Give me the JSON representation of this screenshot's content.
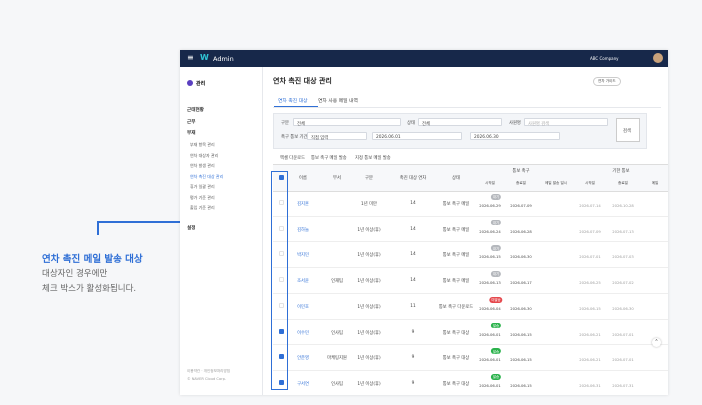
{
  "callout": {
    "title": "연차 촉진 메일 발송 대상",
    "lines": [
      "대상자인 경우에만",
      "체크 박스가 활성화됩니다."
    ]
  },
  "topbar": {
    "brand": "Admin",
    "company": "ABC Company"
  },
  "sidebar": {
    "title": "관리",
    "menu": [
      {
        "label": "근태현황",
        "level": 1
      },
      {
        "label": "근무",
        "level": 1
      },
      {
        "label": "부재",
        "level": 1
      },
      {
        "label": "부재 항목 관리",
        "level": 2
      },
      {
        "label": "연차 대상자 관리",
        "level": 2
      },
      {
        "label": "연차 발생 관리",
        "level": 2
      },
      {
        "label": "연차 촉진 대상 관리",
        "level": 2,
        "active": true
      },
      {
        "label": "휴가 일괄 관리",
        "level": 2
      },
      {
        "label": "평가 기준 관리",
        "level": 2
      },
      {
        "label": "출입 기준 관리",
        "level": 2
      },
      {
        "label": "설정",
        "level": 1
      }
    ],
    "footer": [
      "이용약관 · 개인정보처리방침",
      "© NAVER Cloud Corp."
    ]
  },
  "page": {
    "title": "연차 촉진 대상 관리",
    "guide": "연차 가이드",
    "tabs": [
      "연차 촉진 대상",
      "연차 사용 메일 내역"
    ],
    "filters": {
      "type_label": "구분",
      "type_value": "전체",
      "status_label": "상태",
      "status_value": "전체",
      "name_label": "사원명",
      "name_placeholder": "사원명 검색",
      "period_label": "촉구 통보 기간",
      "period_value": "직접 입력",
      "date_from": "2026.06.01",
      "date_to": "2026.06.30",
      "search": "검색"
    },
    "actions": [
      "엑셀 다운로드",
      "통보 촉구 메일 발송",
      "지정 통보 메일 발송"
    ]
  },
  "table": {
    "headers": [
      "이름",
      "부서",
      "구분",
      "촉진 대상 연차",
      "상태"
    ],
    "group_headers": [
      "통보 촉구",
      "기한 통보"
    ],
    "sub_headers": [
      "시작일",
      "종료일",
      "메일 발송 일시",
      "시작일",
      "종료일",
      "메일"
    ],
    "rows": [
      {
        "checked": false,
        "cells": [
          "김지훈",
          null,
          "1년 미만",
          "14",
          "통보 촉구 메일"
        ],
        "badge": "대기",
        "dates": [
          "2026-06-29",
          "2026-07-09",
          null,
          "2026-07-14",
          "2026-10-28"
        ]
      },
      {
        "checked": false,
        "cells": [
          "김하늘",
          null,
          "1년 이상(휴)",
          "14",
          "통보 촉구 메일"
        ],
        "badge": "대기",
        "dates": [
          "2026-06-24",
          "2026-06-28",
          null,
          "2026-07-09",
          "2026-07-13"
        ]
      },
      {
        "checked": false,
        "cells": [
          "박지민",
          null,
          "1년 이상(휴)",
          "14",
          "통보 촉구 메일"
        ],
        "badge": "대기",
        "dates": [
          "2026-06-15",
          "2026-06-30",
          null,
          "2026-07-01",
          "2026-07-03"
        ]
      },
      {
        "checked": false,
        "cells": [
          "조서윤",
          "인재팀",
          "1년 이상(휴)",
          "14",
          "통보 촉구 메일"
        ],
        "badge": "대기",
        "dates": [
          "2026-06-13",
          "2026-06-17",
          null,
          "2026-06-25",
          "2026-07-02"
        ]
      },
      {
        "checked": false,
        "cells": [
          "이민호",
          null,
          "1년 이상(휴)",
          "11",
          "통보 촉구 다운로드"
        ],
        "badge": "미발송",
        "dates": [
          "2026-06-04",
          "2026-06-30",
          null,
          "2026-06-15",
          "2026-06-30"
        ]
      },
      {
        "checked": true,
        "cells": [
          "이수민",
          "인사팀",
          "1년 이상(휴)",
          "9",
          "통보 촉구 대상"
        ],
        "badge": "발송",
        "dates": [
          "2026-06-01",
          "2026-06-15",
          null,
          "2026-06-21",
          "2026-07-01"
        ]
      },
      {
        "checked": true,
        "cells": [
          "안준영",
          "마케팅지원",
          "1년 이상(휴)",
          "9",
          "통보 촉구 대상"
        ],
        "badge": "발송",
        "dates": [
          "2026-06-01",
          "2026-06-15",
          null,
          "2026-06-21",
          "2026-07-01"
        ]
      },
      {
        "checked": true,
        "cells": [
          "구서연",
          "인사팀",
          "1년 이상(휴)",
          "9",
          "통보 촉구 대상"
        ],
        "badge": "발송",
        "dates": [
          "2026-06-01",
          "2026-06-15",
          null,
          "2026-06-31",
          "2026-07-31"
        ]
      }
    ]
  }
}
